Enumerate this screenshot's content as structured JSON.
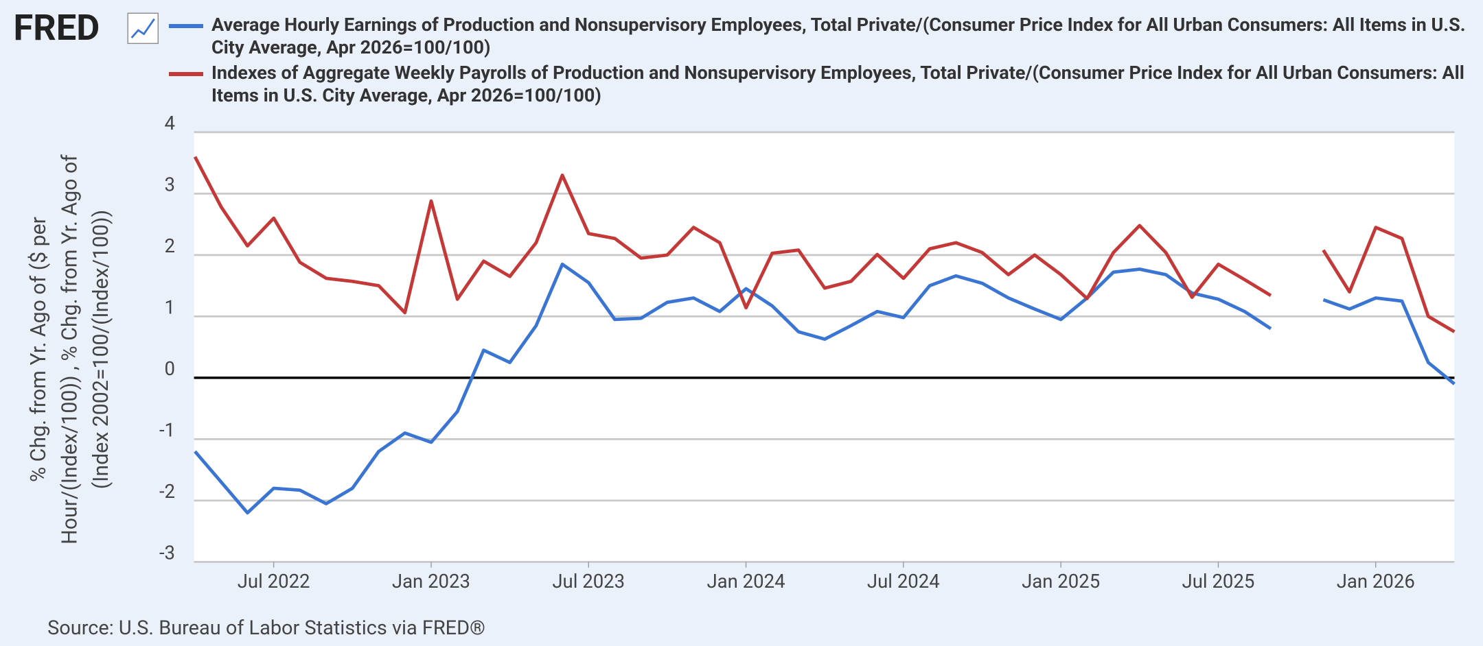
{
  "chart_data": {
    "type": "line",
    "logo": "FRED",
    "ylabel": [
      "% Chg. from Yr. Ago of ($ per",
      "Hour/(Index/100)) , % Chg. from Yr. Ago of",
      "(Index 2002=100/(Index/100))"
    ],
    "source": "Source: U.S. Bureau of Labor Statistics via FRED®",
    "categories": [
      null,
      null,
      null,
      "Jul 2022",
      null,
      null,
      null,
      null,
      null,
      "Jan 2023",
      null,
      null,
      null,
      null,
      null,
      "Jul 2023",
      null,
      null,
      null,
      null,
      null,
      "Jan 2024",
      null,
      null,
      null,
      null,
      null,
      "Jul 2024",
      null,
      null,
      null,
      null,
      null,
      "Jan 2025",
      null,
      null,
      null,
      null,
      null,
      "Jul 2025",
      null,
      null,
      null,
      null,
      null,
      "Jan 2026",
      null,
      null,
      null
    ],
    "series": [
      {
        "name": "Average Hourly Earnings of Production and Nonsupervisory Employees, Total Private/(Consumer Price Index for All Urban Consumers: All Items in U.S. City Average, Apr 2026=100/100)",
        "color": "#3a75d4",
        "values": [
          -1.2,
          -1.7,
          -2.2,
          -1.8,
          -1.83,
          -2.05,
          -1.8,
          -1.2,
          -0.9,
          -1.05,
          -0.55,
          0.45,
          0.25,
          0.85,
          1.85,
          1.55,
          0.95,
          0.97,
          1.23,
          1.3,
          1.08,
          1.45,
          1.17,
          0.75,
          0.63,
          0.85,
          1.08,
          0.98,
          1.5,
          1.66,
          1.54,
          1.3,
          1.12,
          0.95,
          1.3,
          1.72,
          1.77,
          1.68,
          1.38,
          1.28,
          1.08,
          0.8,
          null,
          1.27,
          1.12,
          1.3,
          1.25,
          0.25,
          -0.1
        ]
      },
      {
        "name": "Indexes of Aggregate Weekly Payrolls of Production and Nonsupervisory Employees, Total Private/(Consumer Price Index for All Urban Consumers: All Items in U.S. City Average, Apr 2026=100/100)",
        "color": "#c43838",
        "values": [
          3.6,
          2.78,
          2.15,
          2.6,
          1.88,
          1.62,
          1.57,
          1.5,
          1.06,
          2.88,
          1.28,
          1.9,
          1.65,
          2.2,
          3.3,
          2.35,
          2.27,
          1.95,
          2.0,
          2.45,
          2.2,
          1.14,
          2.03,
          2.08,
          1.46,
          1.57,
          2.01,
          1.62,
          2.1,
          2.2,
          2.04,
          1.68,
          2.0,
          1.68,
          1.29,
          2.04,
          2.48,
          2.04,
          1.31,
          1.85,
          1.6,
          1.34,
          null,
          2.08,
          1.4,
          2.45,
          2.27,
          1.0,
          0.75
        ]
      }
    ],
    "ylim": [
      -3,
      4
    ],
    "yticks": [
      -3,
      -2,
      -1,
      0,
      1,
      2,
      3,
      4
    ],
    "grid": true,
    "zero_line": true
  }
}
